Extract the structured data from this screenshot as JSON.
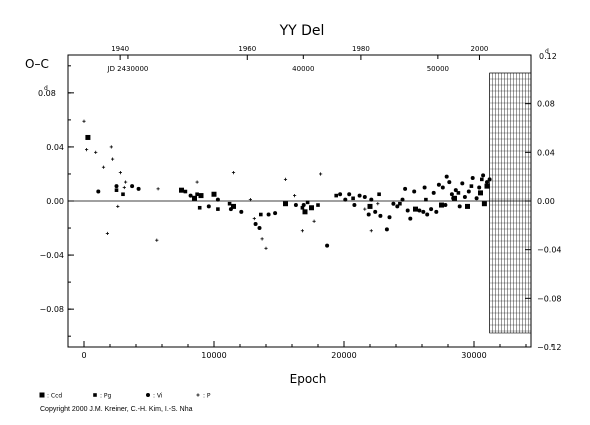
{
  "chart_data": {
    "type": "scatter",
    "title": "YY Del",
    "ylabel": "O–C",
    "xlabel": "Epoch",
    "xlim": [
      -2200,
      37500
    ],
    "ylim": [
      -0.108,
      0.108
    ],
    "right_ylim": [
      -0.12,
      0.12
    ],
    "x_ticks": [
      0,
      10000,
      20000,
      30000
    ],
    "y_ticks": [
      -0.08,
      -0.04,
      0.0,
      0.04,
      0.08
    ],
    "y_tick_labels": [
      "−0.08",
      "−0.04",
      "0.00",
      "0.04",
      "0.08"
    ],
    "y_top_label": "0.08",
    "y_unit": "d",
    "right_ticks": [
      -0.12,
      -0.08,
      -0.04,
      0.0,
      0.04,
      0.08,
      0.12
    ],
    "right_tick_labels": [
      "−0.12",
      "−0.08",
      "−0.04",
      "0.00",
      "0.04",
      "0.08",
      "0.12"
    ],
    "right_top_label": "0.12",
    "top_year_ticks": [
      {
        "label": "1940",
        "x": 2780
      },
      {
        "label": "1960",
        "x": 12560
      },
      {
        "label": "1980",
        "x": 21300
      },
      {
        "label": "2000",
        "x": 30420
      }
    ],
    "jd_ticks": [
      {
        "label": "JD 2430000",
        "x": 3380
      },
      {
        "label": "40000",
        "x": 16870
      },
      {
        "label": "50000",
        "x": 27220
      }
    ],
    "prediction_region": [
      31200,
      37500
    ],
    "grid": false,
    "legend_position": "bottom-left",
    "series": [
      {
        "name": ": Ccd",
        "marker": "square",
        "points": [
          [
            300,
            0.047
          ],
          [
            7500,
            0.008
          ],
          [
            8500,
            0.002
          ],
          [
            9000,
            0.004
          ],
          [
            10000,
            0.005
          ],
          [
            11500,
            -0.004
          ],
          [
            15500,
            -0.002
          ],
          [
            17000,
            -0.008
          ],
          [
            17500,
            -0.005
          ],
          [
            22000,
            -0.004
          ],
          [
            25500,
            -0.006
          ],
          [
            27500,
            -0.003
          ],
          [
            28500,
            0.002
          ],
          [
            29500,
            -0.004
          ],
          [
            30500,
            0.006
          ],
          [
            30800,
            -0.002
          ],
          [
            31000,
            0.011
          ]
        ]
      },
      {
        "name": ": Pg",
        "marker": "square-small",
        "points": [
          [
            2500,
            0.008
          ],
          [
            3000,
            0.005
          ],
          [
            7800,
            0.007
          ],
          [
            8700,
            0.005
          ],
          [
            8900,
            -0.005
          ],
          [
            10300,
            -0.006
          ],
          [
            11200,
            -0.002
          ],
          [
            13600,
            -0.01
          ],
          [
            16800,
            -0.005
          ],
          [
            17200,
            -0.001
          ],
          [
            18000,
            -0.003
          ],
          [
            19400,
            0.004
          ],
          [
            20700,
            0.002
          ],
          [
            22700,
            0.005
          ],
          [
            24300,
            -0.002
          ],
          [
            26300,
            0.001
          ],
          [
            28800,
            0.006
          ],
          [
            29800,
            0.011
          ],
          [
            30600,
            0.016
          ]
        ]
      },
      {
        "name": ": Vi",
        "marker": "dot",
        "points": [
          [
            1100,
            0.007
          ],
          [
            2500,
            0.011
          ],
          [
            3700,
            0.011
          ],
          [
            4200,
            0.009
          ],
          [
            8200,
            0.004
          ],
          [
            9600,
            -0.004
          ],
          [
            10300,
            0.001
          ],
          [
            11300,
            -0.006
          ],
          [
            12100,
            -0.008
          ],
          [
            13200,
            -0.017
          ],
          [
            13500,
            -0.02
          ],
          [
            14200,
            -0.01
          ],
          [
            14700,
            -0.009
          ],
          [
            16300,
            -0.003
          ],
          [
            16900,
            -0.003
          ],
          [
            18700,
            -0.033
          ],
          [
            19700,
            0.005
          ],
          [
            20400,
            0.005
          ],
          [
            20800,
            -0.003
          ],
          [
            21200,
            0.004
          ],
          [
            21600,
            0.003
          ],
          [
            21900,
            -0.01
          ],
          [
            22400,
            -0.008
          ],
          [
            22800,
            -0.011
          ],
          [
            23300,
            -0.021
          ],
          [
            23500,
            -0.012
          ],
          [
            24100,
            -0.004
          ],
          [
            24500,
            0.001
          ],
          [
            24900,
            -0.007
          ],
          [
            25100,
            -0.013
          ],
          [
            25400,
            0.007
          ],
          [
            25800,
            -0.007
          ],
          [
            26100,
            -0.008
          ],
          [
            26400,
            -0.01
          ],
          [
            26700,
            -0.006
          ],
          [
            26900,
            0.006
          ],
          [
            27100,
            -0.008
          ],
          [
            27300,
            0.012
          ],
          [
            27600,
            0.01
          ],
          [
            27800,
            -0.003
          ],
          [
            28100,
            0.014
          ],
          [
            28300,
            0.005
          ],
          [
            28600,
            0.008
          ],
          [
            28900,
            -0.004
          ],
          [
            29100,
            0.013
          ],
          [
            29300,
            0.003
          ],
          [
            29600,
            0.007
          ],
          [
            29900,
            0.017
          ],
          [
            30200,
            0.002
          ],
          [
            30400,
            0.01
          ],
          [
            30700,
            0.019
          ],
          [
            31000,
            0.014
          ],
          [
            31200,
            0.016
          ],
          [
            26200,
            0.01
          ],
          [
            27900,
            0.018
          ],
          [
            28400,
            0.002
          ],
          [
            24700,
            0.009
          ],
          [
            23800,
            -0.002
          ],
          [
            22100,
            0.001
          ],
          [
            20100,
            0.001
          ]
        ]
      },
      {
        "name": ": P",
        "marker": "plus",
        "points": [
          [
            0,
            0.059
          ],
          [
            200,
            0.038
          ],
          [
            900,
            0.036
          ],
          [
            1500,
            0.025
          ],
          [
            2100,
            0.04
          ],
          [
            2200,
            0.031
          ],
          [
            2600,
            -0.004
          ],
          [
            2800,
            0.021
          ],
          [
            3100,
            0.01
          ],
          [
            3200,
            0.014
          ],
          [
            1800,
            -0.024
          ],
          [
            5600,
            -0.029
          ],
          [
            5700,
            0.009
          ],
          [
            8700,
            0.014
          ],
          [
            11500,
            0.021
          ],
          [
            12800,
            0.001
          ],
          [
            13100,
            -0.013
          ],
          [
            13700,
            -0.028
          ],
          [
            14000,
            -0.035
          ],
          [
            15500,
            0.016
          ],
          [
            16200,
            0.004
          ],
          [
            16800,
            -0.022
          ],
          [
            17700,
            -0.015
          ],
          [
            18200,
            0.02
          ],
          [
            21600,
            -0.006
          ],
          [
            22100,
            -0.022
          ],
          [
            22600,
            -0.002
          ]
        ]
      }
    ]
  },
  "copyright": "Copyright 2000 J.M. Kreiner, C.-H. Kim, I.-S. Nha"
}
